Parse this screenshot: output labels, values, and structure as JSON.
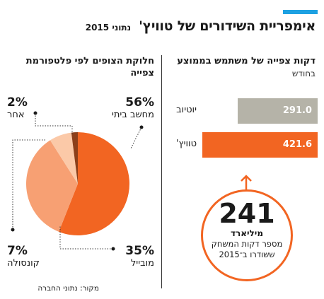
{
  "header": {
    "title": "אימפריית השידורים של טוויץ'",
    "subtitle": "נתוני 2015",
    "accent_color": "#1da1e2"
  },
  "chart_data": [
    {
      "type": "bar",
      "title": "דקות צפייה של משתמש בממוצע",
      "subtitle": "בחודש",
      "categories": [
        "יוטיוב",
        "טוויץ'"
      ],
      "values": [
        291.0,
        421.6
      ],
      "value_labels": [
        "291.0",
        "421.6"
      ],
      "colors": [
        "#b5b3a8",
        "#f26522"
      ],
      "xlim": [
        0,
        421.6
      ],
      "annotation": {
        "number": "241",
        "unit": "מיליארד",
        "text": "מספר דקות המשחק ששודרו ב־2015"
      }
    },
    {
      "type": "pie",
      "title": "חלוקת הצופים לפי פלטפורמת צפייה",
      "labels": [
        "מחשב ביתי",
        "מובייל",
        "קונסולה",
        "אחר"
      ],
      "values": [
        56,
        35,
        7,
        2
      ],
      "value_labels": [
        "56%",
        "35%",
        "7%",
        "2%"
      ],
      "colors": [
        "#f26522",
        "#f7a073",
        "#fbc9a8",
        "#8c3f1a"
      ]
    }
  ],
  "source": "מקור: נתוני החברה"
}
